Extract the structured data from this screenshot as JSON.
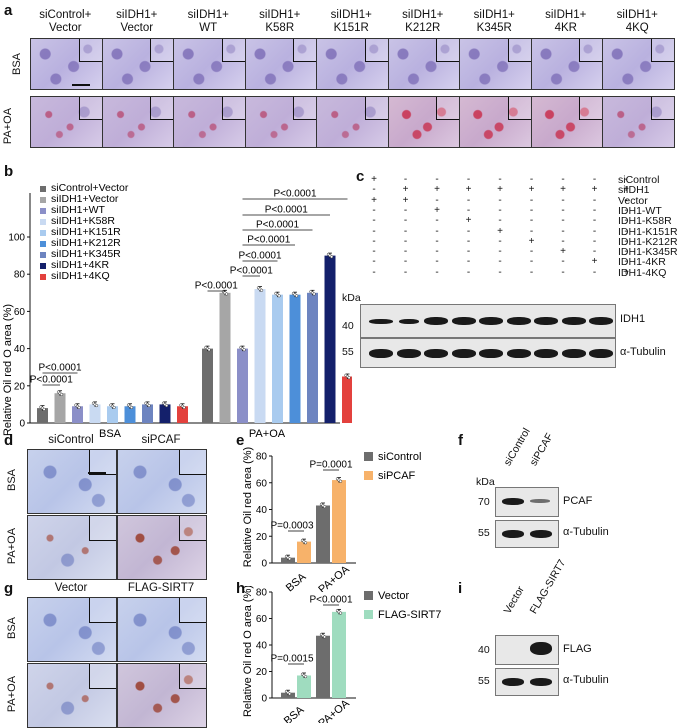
{
  "panels": {
    "a": "a",
    "b": "b",
    "c": "c",
    "d": "d",
    "e": "e",
    "f": "f",
    "g": "g",
    "h": "h",
    "i": "i"
  },
  "panel_a": {
    "columns": [
      {
        "line1": "siControl+",
        "line2": "Vector"
      },
      {
        "line1": "siIDH1+",
        "line2": "Vector"
      },
      {
        "line1": "siIDH1+",
        "line2": "WT"
      },
      {
        "line1": "siIDH1+",
        "line2": "K58R"
      },
      {
        "line1": "siIDH1+",
        "line2": "K151R"
      },
      {
        "line1": "siIDH1+",
        "line2": "K212R"
      },
      {
        "line1": "siIDH1+",
        "line2": "K345R"
      },
      {
        "line1": "siIDH1+",
        "line2": "4KR"
      },
      {
        "line1": "siIDH1+",
        "line2": "4KQ"
      }
    ],
    "rows": [
      "BSA",
      "PA+OA"
    ]
  },
  "chart_data": [
    {
      "id": "b",
      "type": "bar",
      "ylabel": "Relative Oil red O area (%)",
      "ylim": [
        0,
        100
      ],
      "yticks": [
        "0",
        "20",
        "40",
        "60",
        "80",
        "100"
      ],
      "groups": [
        "BSA",
        "PA+OA"
      ],
      "legend_position": "top-left",
      "series": [
        {
          "name": "siControl+Vector",
          "color": "#6d6d6d",
          "values": [
            8,
            40
          ]
        },
        {
          "name": "siIDH1+Vector",
          "color": "#a6a6a6",
          "values": [
            16,
            70
          ]
        },
        {
          "name": "siIDH1+WT",
          "color": "#8b8fc8",
          "values": [
            9,
            40
          ]
        },
        {
          "name": "siIDH1+K58R",
          "color": "#c9daf2",
          "values": [
            10,
            72
          ]
        },
        {
          "name": "siIDH1+K151R",
          "color": "#a9cbef",
          "values": [
            9,
            69
          ]
        },
        {
          "name": "siIDH1+K212R",
          "color": "#4d8fd9",
          "values": [
            9,
            69
          ]
        },
        {
          "name": "siIDH1+K345R",
          "color": "#6d84c0",
          "values": [
            10,
            70
          ]
        },
        {
          "name": "siIDH1+4KR",
          "color": "#14206b",
          "values": [
            10,
            90
          ]
        },
        {
          "name": "siIDH1+4KQ",
          "color": "#e3413d",
          "values": [
            9,
            25
          ]
        }
      ],
      "annotations": [
        "P<0.0001",
        "P<0.0001",
        "P<0.0001",
        "P<0.0001",
        "P<0.0001",
        "P<0.0001",
        "P<0.0001",
        "P<0.0001",
        "P<0.0001"
      ]
    },
    {
      "id": "e",
      "type": "bar",
      "ylabel": "Relative Oil red area (%)",
      "ylim": [
        0,
        80
      ],
      "yticks": [
        "0",
        "20",
        "40",
        "60",
        "80"
      ],
      "groups": [
        "BSA",
        "PA+OA"
      ],
      "legend_position": "top-right",
      "series": [
        {
          "name": "siControl",
          "color": "#6d6d6d",
          "values": [
            4,
            43
          ]
        },
        {
          "name": "siPCAF",
          "color": "#f7b26a",
          "values": [
            16,
            62
          ]
        }
      ],
      "annotations": [
        "P=0.0003",
        "P=0.0001"
      ]
    },
    {
      "id": "h",
      "type": "bar",
      "ylabel": "Relative Oil red O area (%)",
      "ylim": [
        0,
        80
      ],
      "yticks": [
        "0",
        "20",
        "40",
        "60",
        "80"
      ],
      "groups": [
        "BSA",
        "PA+OA"
      ],
      "legend_position": "top-right",
      "series": [
        {
          "name": "Vector",
          "color": "#6d6d6d",
          "values": [
            4,
            47
          ]
        },
        {
          "name": "FLAG-SIRT7",
          "color": "#9fdcbf",
          "values": [
            17,
            65
          ]
        }
      ],
      "annotations": [
        "P=0.0015",
        "P<0.0001"
      ]
    }
  ],
  "panel_c": {
    "conditions": [
      "siControl",
      "siIDH1",
      "Vector",
      "IDH1-WT",
      "IDH1-K58R",
      "IDH1-K151R",
      "IDH1-K212R",
      "IDH1-K345R",
      "IDH1-4KR",
      "IDH1-4KQ"
    ],
    "matrix": [
      [
        "+",
        "-",
        "-",
        "-",
        "-",
        "-",
        "-",
        "-",
        "-"
      ],
      [
        "-",
        "+",
        "+",
        "+",
        "+",
        "+",
        "+",
        "+",
        "+"
      ],
      [
        "+",
        "+",
        "-",
        "-",
        "-",
        "-",
        "-",
        "-",
        "-"
      ],
      [
        "-",
        "-",
        "+",
        "-",
        "-",
        "-",
        "-",
        "-",
        "-"
      ],
      [
        "-",
        "-",
        "-",
        "+",
        "-",
        "-",
        "-",
        "-",
        "-"
      ],
      [
        "-",
        "-",
        "-",
        "-",
        "+",
        "-",
        "-",
        "-",
        "-"
      ],
      [
        "-",
        "-",
        "-",
        "-",
        "-",
        "+",
        "-",
        "-",
        "-"
      ],
      [
        "-",
        "-",
        "-",
        "-",
        "-",
        "-",
        "+",
        "-",
        "-"
      ],
      [
        "-",
        "-",
        "-",
        "-",
        "-",
        "-",
        "-",
        "+",
        "-"
      ],
      [
        "-",
        "-",
        "-",
        "-",
        "-",
        "-",
        "-",
        "-",
        "+"
      ]
    ],
    "kda": "kDa",
    "markers": [
      "40",
      "55"
    ],
    "blots": [
      "IDH1",
      "α-Tubulin"
    ]
  },
  "panel_d": {
    "columns": [
      "siControl",
      "siPCAF"
    ],
    "rows": [
      "BSA",
      "PA+OA"
    ]
  },
  "panel_f": {
    "kda": "kDa",
    "lanes": [
      "siControl",
      "siPCAF"
    ],
    "markers": [
      "70",
      "55"
    ],
    "blots": [
      "PCAF",
      "α-Tubulin"
    ]
  },
  "panel_g": {
    "columns": [
      "Vector",
      "FLAG-SIRT7"
    ],
    "rows": [
      "BSA",
      "PA+OA"
    ]
  },
  "panel_i": {
    "lanes": [
      "Vector",
      "FLAG-SIRT7"
    ],
    "markers": [
      "40",
      "55"
    ],
    "blots": [
      "FLAG",
      "α-Tubulin"
    ]
  }
}
